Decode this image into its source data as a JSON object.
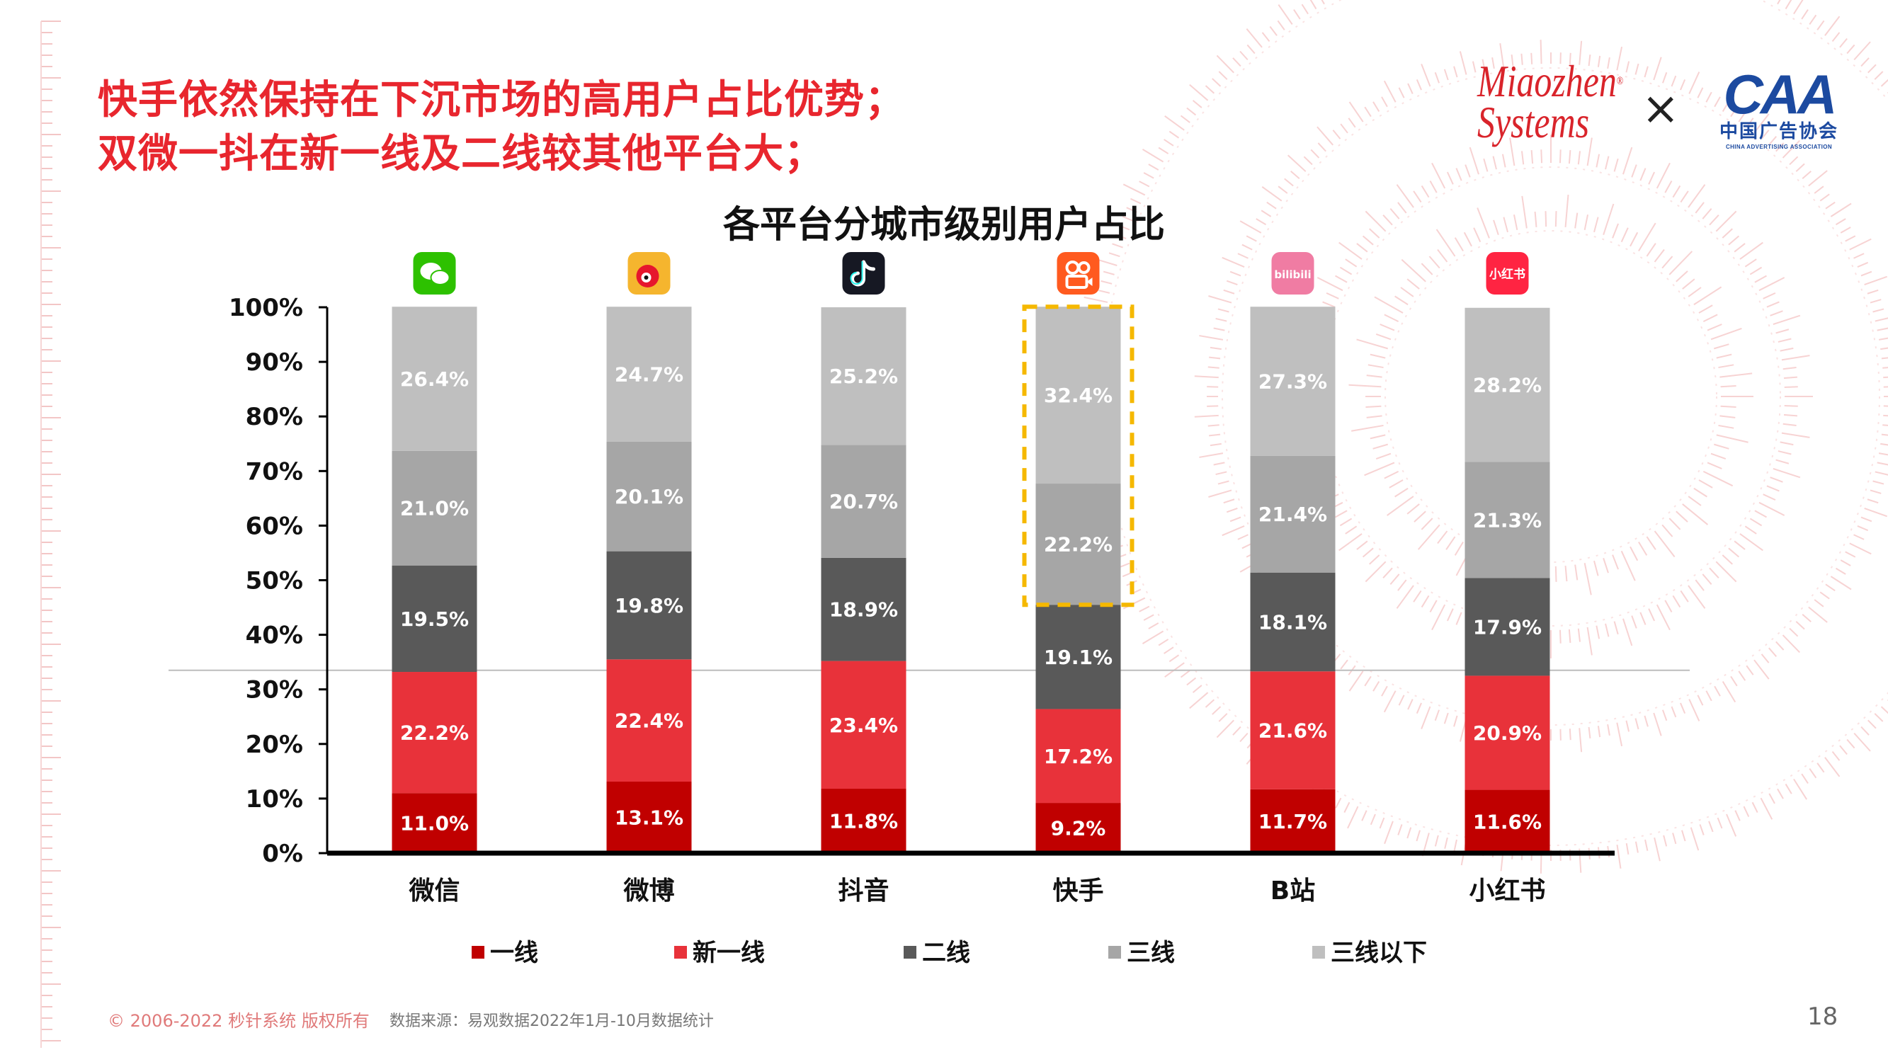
{
  "headline": {
    "line1": "快手依然保持在下沉市场的高用户占比优势；",
    "line2": "双微一抖在新一线及二线较其他平台大；"
  },
  "logos": {
    "miaozhen_line1": "Miaozhen",
    "miaozhen_line2": "Systems",
    "miaozhen_reg": "®",
    "times_symbol": "×",
    "caa_mark": "CAA",
    "caa_cn": "中国广告协会",
    "caa_en": "CHINA ADVERTISING ASSOCIATION"
  },
  "footer": {
    "copyright": "© 2006-2022 秒针系统 版权所有",
    "source": "数据来源：易观数据2022年1月-10月数据统计",
    "page_number": "18"
  },
  "platform_icons": [
    {
      "platform": "微信",
      "icon": "wechat-icon",
      "color": "#2dc100"
    },
    {
      "platform": "微博",
      "icon": "weibo-icon",
      "color": "#f5b52e"
    },
    {
      "platform": "抖音",
      "icon": "douyin-icon",
      "color": "#161823"
    },
    {
      "platform": "快手",
      "icon": "kuaishou-icon",
      "color": "#ff5a1f"
    },
    {
      "platform": "B站",
      "icon": "bilibili-icon",
      "color": "#f07ca3",
      "text": "bilibili"
    },
    {
      "platform": "小红书",
      "icon": "xiaohongshu-icon",
      "color": "#ff2442",
      "text": "小红书"
    }
  ],
  "highlight": {
    "category_index": 3,
    "series_from": 3,
    "series_to": 4,
    "color": "#f5b800"
  },
  "chart_data": {
    "type": "bar",
    "stacked": true,
    "title": "各平台分城市级别用户占比",
    "categories": [
      "微信",
      "微博",
      "抖音",
      "快手",
      "B站",
      "小红书"
    ],
    "series": [
      {
        "name": "一线",
        "color": "#c00000",
        "values": [
          11.0,
          13.1,
          11.8,
          9.2,
          11.7,
          11.6
        ]
      },
      {
        "name": "新一线",
        "color": "#e8323a",
        "values": [
          22.2,
          22.4,
          23.4,
          17.2,
          21.6,
          20.9
        ]
      },
      {
        "name": "二线",
        "color": "#595959",
        "values": [
          19.5,
          19.8,
          18.9,
          19.1,
          18.1,
          17.9
        ]
      },
      {
        "name": "三线",
        "color": "#a6a6a6",
        "values": [
          21.0,
          20.1,
          20.7,
          22.2,
          21.4,
          21.3
        ]
      },
      {
        "name": "三线以下",
        "color": "#bfbfbf",
        "values": [
          26.4,
          24.7,
          25.2,
          32.4,
          27.3,
          28.2
        ]
      }
    ],
    "y_ticks": [
      "0%",
      "10%",
      "20%",
      "30%",
      "40%",
      "50%",
      "60%",
      "70%",
      "80%",
      "90%",
      "100%"
    ],
    "ylim": [
      0,
      100
    ],
    "reference_line_value": 33.5,
    "grid": false,
    "legend_position": "bottom",
    "label_color": "#ffffff"
  }
}
